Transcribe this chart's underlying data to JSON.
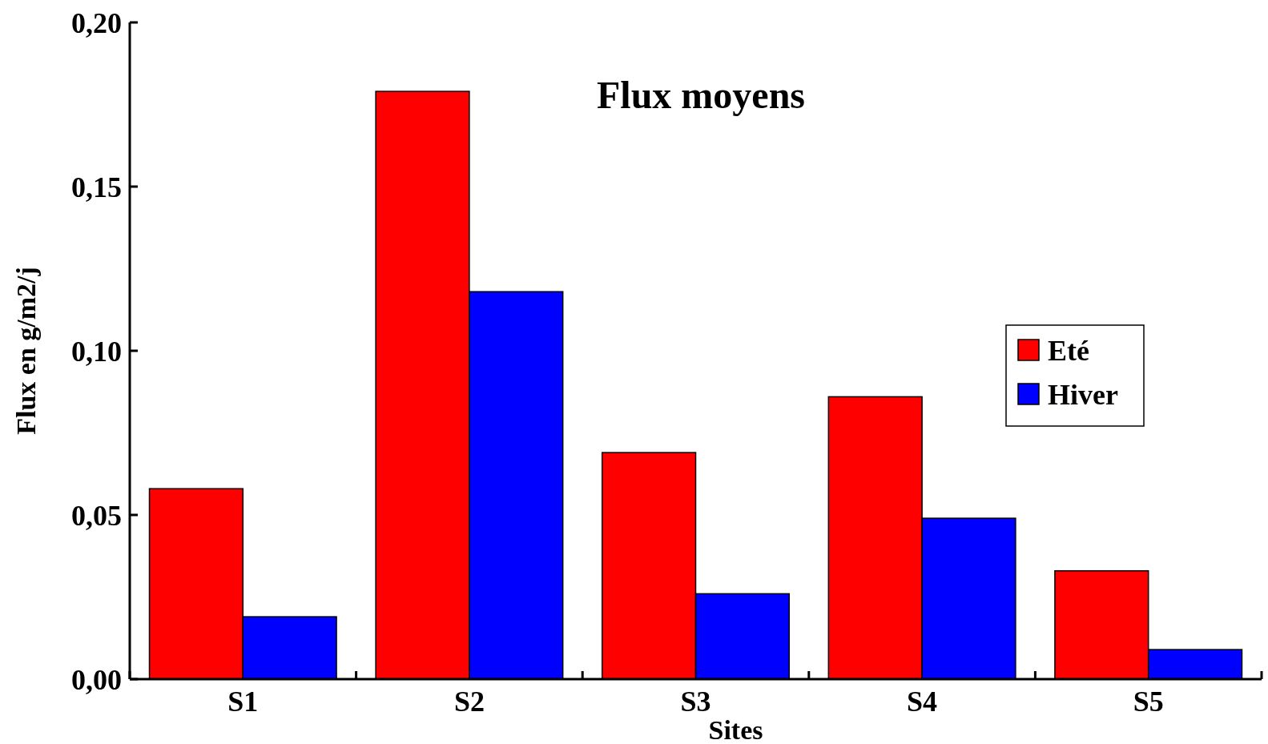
{
  "chart_data": {
    "type": "bar",
    "title": "Flux moyens",
    "xlabel": "Sites",
    "ylabel": "Flux en g/m2/j",
    "categories": [
      "S1",
      "S2",
      "S3",
      "S4",
      "S5"
    ],
    "series": [
      {
        "name": "Eté",
        "color": "#ff0000",
        "values": [
          0.058,
          0.179,
          0.069,
          0.086,
          0.033
        ]
      },
      {
        "name": "Hiver",
        "color": "#0000ff",
        "values": [
          0.019,
          0.118,
          0.026,
          0.049,
          0.009
        ]
      }
    ],
    "ylim": [
      0,
      0.2
    ],
    "yticks": [
      {
        "value": 0,
        "label": "0,00"
      },
      {
        "value": 0.05,
        "label": "0,05"
      },
      {
        "value": 0.1,
        "label": "0,10"
      },
      {
        "value": 0.15,
        "label": "0,15"
      },
      {
        "value": 0.2,
        "label": "0,20"
      }
    ],
    "legend": "right",
    "grid": false
  }
}
